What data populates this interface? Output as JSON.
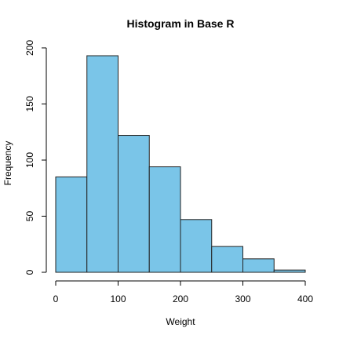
{
  "chart_data": {
    "type": "bar",
    "title": "Histogram in Base R",
    "xlabel": "Weight",
    "ylabel": "Frequency",
    "bins": [
      {
        "x0": 0,
        "x1": 50,
        "count": 85
      },
      {
        "x0": 50,
        "x1": 100,
        "count": 193
      },
      {
        "x0": 100,
        "x1": 150,
        "count": 122
      },
      {
        "x0": 150,
        "x1": 200,
        "count": 94
      },
      {
        "x0": 200,
        "x1": 250,
        "count": 47
      },
      {
        "x0": 250,
        "x1": 300,
        "count": 23
      },
      {
        "x0": 300,
        "x1": 350,
        "count": 12
      },
      {
        "x0": 350,
        "x1": 400,
        "count": 2
      }
    ],
    "xlim": [
      0,
      400
    ],
    "ylim": [
      0,
      200
    ],
    "x_ticks": [
      0,
      100,
      200,
      300,
      400
    ],
    "y_ticks": [
      0,
      50,
      100,
      150,
      200
    ],
    "bar_color": "#7AC5E8",
    "edge_color": "#222222",
    "grid": false,
    "legend": "none"
  }
}
